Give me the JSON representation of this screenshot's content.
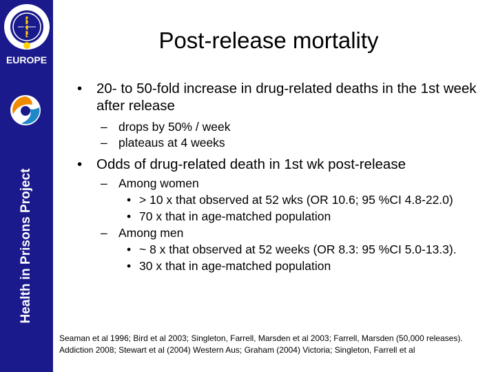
{
  "sidebar": {
    "logo_word": "EUROPE",
    "vertical_title": "Health in Prisons Project"
  },
  "slide": {
    "title": "Post-release mortality",
    "bullets": [
      {
        "text": "20- to 50-fold increase in drug-related deaths in the 1st week after release",
        "sub": [
          {
            "text": "drops by 50% / week",
            "sub": []
          },
          {
            "text": "plateaus at 4 weeks",
            "sub": []
          }
        ]
      },
      {
        "text": "Odds of drug-related death in 1st wk post-release",
        "sub": [
          {
            "text": "Among women",
            "sub": [
              "> 10 x that observed at 52 wks (OR 10.6;  95 %CI  4.8-22.0)",
              "70 x that in age-matched population"
            ]
          },
          {
            "text": "Among men",
            "sub": [
              "~ 8 x that observed at  52 weeks (OR 8.3:  95 %CI  5.0-13.3).",
              "30 x that in age-matched population"
            ]
          }
        ]
      }
    ],
    "footnote": "Seaman et al 1996; Bird et al  2003; Singleton, Farrell, Marsden et al 2003; Farrell, Marsden (50,000 releases). Addiction 2008; Stewart et al (2004) Western Aus; Graham (2004) Victoria; Singleton, Farrell et al"
  },
  "colors": {
    "sidebar": "#1a1a8c",
    "accent_orange": "#f08a00",
    "accent_blue": "#1e88c8"
  },
  "icons": [
    "who-emblem-icon",
    "globe-swirl-icon"
  ]
}
